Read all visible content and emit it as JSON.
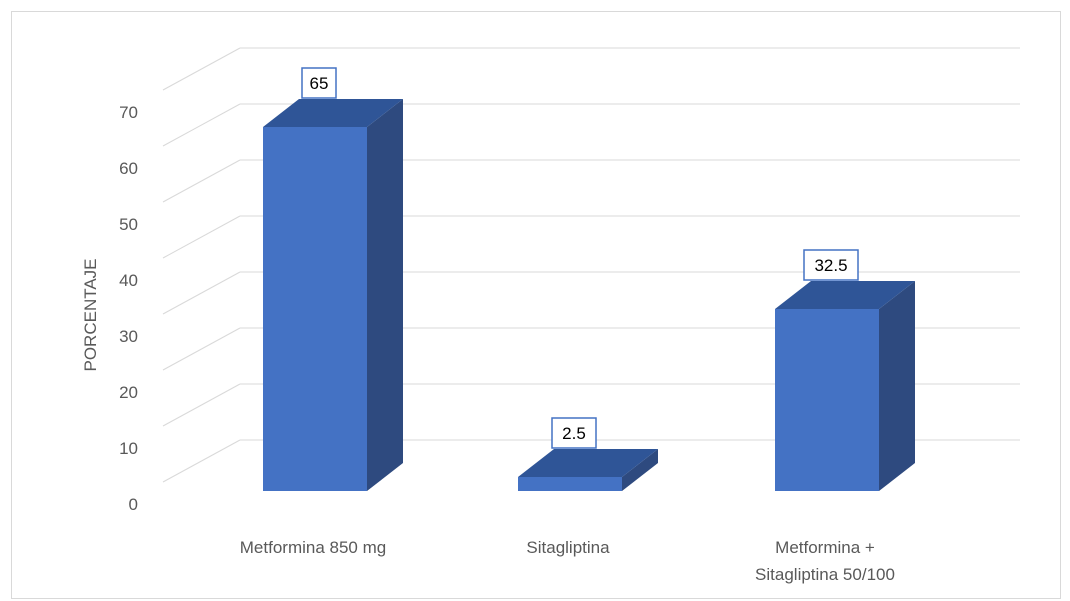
{
  "chart_data": {
    "type": "bar",
    "style": "3d-column",
    "categories": [
      [
        "Metformina 850 mg"
      ],
      [
        "Sitagliptina"
      ],
      [
        "Metformina +",
        "Sitagliptina 50/100"
      ]
    ],
    "values": [
      65,
      2.5,
      32.5
    ],
    "data_labels": [
      "65",
      "2.5",
      "32.5"
    ],
    "title": "",
    "xlabel": "",
    "ylabel": "PORCENTAJE",
    "ylim": [
      0,
      70
    ],
    "yticks": [
      0,
      10,
      20,
      30,
      40,
      50,
      60,
      70
    ],
    "grid": true,
    "legend": "none",
    "colors": {
      "bar_front": "#4472c4",
      "bar_side": "#2e4a7f",
      "bar_top": "#2f5597",
      "label_border": "#4472c4",
      "grid": "#d9d9d9",
      "text": "#595959"
    }
  }
}
